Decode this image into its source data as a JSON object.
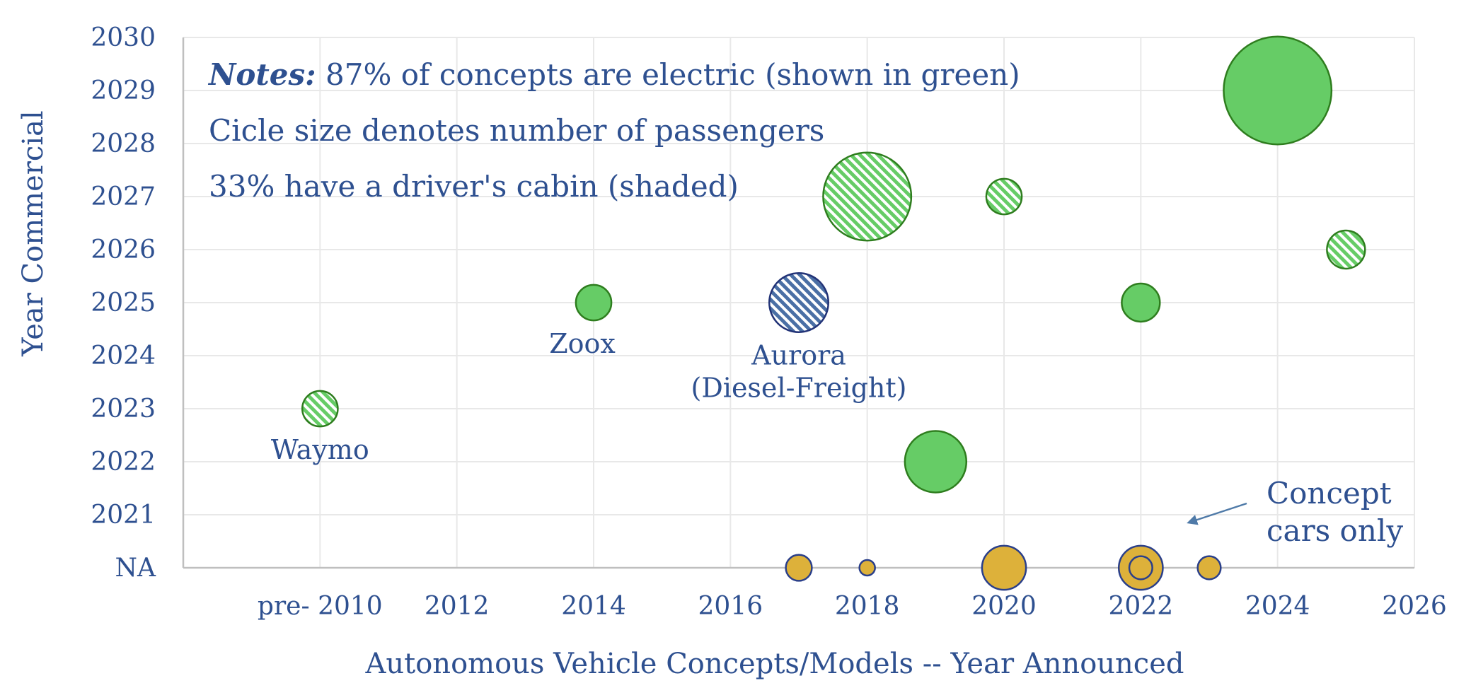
{
  "chart_data": {
    "type": "scatter",
    "variant": "bubble",
    "title": "",
    "xlabel": "Autonomous Vehicle Concepts/Models -- Year Announced",
    "ylabel": "Year Commercial",
    "x_ticks": [
      {
        "value": 2010,
        "label": "pre- 2010"
      },
      {
        "value": 2012,
        "label": "2012"
      },
      {
        "value": 2014,
        "label": "2014"
      },
      {
        "value": 2016,
        "label": "2016"
      },
      {
        "value": 2018,
        "label": "2018"
      },
      {
        "value": 2020,
        "label": "2020"
      },
      {
        "value": 2022,
        "label": "2022"
      },
      {
        "value": 2024,
        "label": "2024"
      },
      {
        "value": 2026,
        "label": "2026"
      }
    ],
    "y_ticks": [
      {
        "value": 2020,
        "label": "NA"
      },
      {
        "value": 2021,
        "label": "2021"
      },
      {
        "value": 2022,
        "label": "2022"
      },
      {
        "value": 2023,
        "label": "2023"
      },
      {
        "value": 2024,
        "label": "2024"
      },
      {
        "value": 2025,
        "label": "2025"
      },
      {
        "value": 2026,
        "label": "2026"
      },
      {
        "value": 2027,
        "label": "2027"
      },
      {
        "value": 2028,
        "label": "2028"
      },
      {
        "value": 2029,
        "label": "2029"
      },
      {
        "value": 2030,
        "label": "2030"
      }
    ],
    "xlim": [
      2008,
      2026
    ],
    "ylim": [
      2020,
      2030
    ],
    "grid": true,
    "points": [
      {
        "x": 2010,
        "y": 2023,
        "size": 1.3,
        "category": "electric",
        "shaded": true
      },
      {
        "x": 2014,
        "y": 2025,
        "size": 1.3,
        "category": "electric",
        "shaded": false
      },
      {
        "x": 2017,
        "y": 2025,
        "size": 3.6,
        "category": "diesel",
        "shaded": true
      },
      {
        "x": 2018,
        "y": 2027,
        "size": 8,
        "category": "electric",
        "shaded": true
      },
      {
        "x": 2019,
        "y": 2022,
        "size": 3.9,
        "category": "electric",
        "shaded": false
      },
      {
        "x": 2020,
        "y": 2027,
        "size": 1.3,
        "category": "electric",
        "shaded": true
      },
      {
        "x": 2022,
        "y": 2025,
        "size": 1.5,
        "category": "electric",
        "shaded": false
      },
      {
        "x": 2024,
        "y": 2029,
        "size": 12,
        "category": "electric",
        "shaded": false
      },
      {
        "x": 2025,
        "y": 2026,
        "size": 1.5,
        "category": "electric",
        "shaded": true
      },
      {
        "x": 2017,
        "y": 2020,
        "size": 0.7,
        "category": "concept",
        "shaded": false
      },
      {
        "x": 2018,
        "y": 2020,
        "size": 0.25,
        "category": "concept",
        "shaded": false
      },
      {
        "x": 2020,
        "y": 2020,
        "size": 2.0,
        "category": "concept",
        "shaded": false
      },
      {
        "x": 2022,
        "y": 2020,
        "size": 2.0,
        "category": "concept",
        "shaded": false,
        "inner_ring_size": 0.55
      },
      {
        "x": 2023,
        "y": 2020,
        "size": 0.55,
        "category": "concept",
        "shaded": false
      }
    ],
    "point_labels": [
      {
        "x": 2010,
        "y": 2023,
        "lines": [
          "Waymo"
        ]
      },
      {
        "x": 2014,
        "y": 2025,
        "lines": [
          "Zoox"
        ]
      },
      {
        "x": 2017,
        "y": 2025,
        "lines": [
          "Aurora",
          "(Diesel-Freight)"
        ]
      }
    ],
    "notes": {
      "bold_prefix": "Notes:",
      "line1": " 87% of concepts are electric (shown in green)",
      "line2": "Cicle size denotes number of passengers",
      "line3": "33% have a driver's cabin (shaded)"
    },
    "annotation": {
      "lines": [
        "Concept",
        "cars only"
      ],
      "arrow": true
    },
    "colors": {
      "electric_fill": "#66cc66",
      "electric_stroke": "#2e7d1e",
      "diesel_fill": "#4a6fa5",
      "diesel_stroke": "#223377",
      "concept_fill": "#ddb13a",
      "concept_stroke": "#2a3f8a",
      "text": "#2e5090",
      "grid": "#e8e8e8",
      "axis": "#bfbfbf",
      "arrow": "#4f7aa8"
    }
  }
}
